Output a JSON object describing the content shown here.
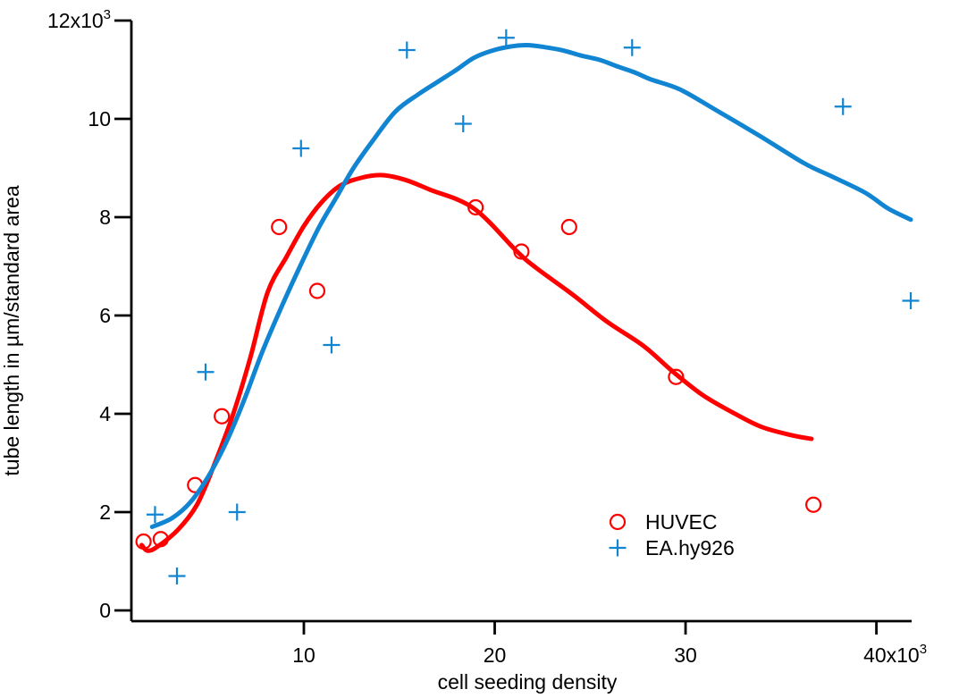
{
  "chart_data": {
    "type": "scatter",
    "title": "",
    "xlabel": "cell seeding density",
    "ylabel": "tube length in µm/standard area",
    "grid": false,
    "legend_position": "inside-lower-right",
    "x_range": [
      962,
      41846
    ],
    "y_range": [
      0,
      12000
    ],
    "x_ticks": [
      {
        "value": 10000,
        "text": "10"
      },
      {
        "value": 20000,
        "text": "20"
      },
      {
        "value": 30000,
        "text": "30"
      },
      {
        "value": 40000,
        "text": "40x10",
        "sup": "3"
      }
    ],
    "y_ticks": [
      {
        "value": 0,
        "text": "0"
      },
      {
        "value": 2000,
        "text": "2"
      },
      {
        "value": 4000,
        "text": "4"
      },
      {
        "value": 6000,
        "text": "6"
      },
      {
        "value": 8000,
        "text": "8"
      },
      {
        "value": 10000,
        "text": "10"
      },
      {
        "value": 12000,
        "text": "12x10",
        "sup": "3"
      }
    ],
    "series": [
      {
        "name": "HUVEC",
        "marker": "circle",
        "color": "#ff0000",
        "points": [
          [
            1600,
            1400
          ],
          [
            2500,
            1450
          ],
          [
            4300,
            2550
          ],
          [
            5700,
            3950
          ],
          [
            8700,
            7800
          ],
          [
            10700,
            6500
          ],
          [
            19000,
            8200
          ],
          [
            21400,
            7300
          ],
          [
            23900,
            7800
          ],
          [
            29500,
            4750
          ],
          [
            36700,
            2150
          ]
        ],
        "fit_curve": [
          [
            1500,
            1330
          ],
          [
            1800,
            1215
          ],
          [
            2300,
            1290
          ],
          [
            3400,
            1640
          ],
          [
            4400,
            2150
          ],
          [
            5300,
            2960
          ],
          [
            6300,
            4000
          ],
          [
            7200,
            5150
          ],
          [
            8100,
            6470
          ],
          [
            9100,
            7200
          ],
          [
            10000,
            7820
          ],
          [
            10900,
            8290
          ],
          [
            11900,
            8640
          ],
          [
            13000,
            8800
          ],
          [
            14100,
            8855
          ],
          [
            15300,
            8760
          ],
          [
            16600,
            8560
          ],
          [
            18900,
            8180
          ],
          [
            21200,
            7290
          ],
          [
            22200,
            6960
          ],
          [
            24100,
            6420
          ],
          [
            25900,
            5870
          ],
          [
            27800,
            5380
          ],
          [
            29300,
            4870
          ],
          [
            30900,
            4380
          ],
          [
            32500,
            4020
          ],
          [
            34000,
            3730
          ],
          [
            35600,
            3560
          ],
          [
            36600,
            3490
          ]
        ]
      },
      {
        "name": "EA.hy926",
        "marker": "plus",
        "color": "#1185d2",
        "points": [
          [
            2200,
            1950
          ],
          [
            3350,
            700
          ],
          [
            4850,
            4850
          ],
          [
            6500,
            2000
          ],
          [
            9850,
            9400
          ],
          [
            11450,
            5400
          ],
          [
            15400,
            11400
          ],
          [
            18350,
            9900
          ],
          [
            20600,
            11650
          ],
          [
            27200,
            11450
          ],
          [
            38250,
            10250
          ],
          [
            41800,
            6300
          ]
        ],
        "fit_curve": [
          [
            2050,
            1700
          ],
          [
            3100,
            1880
          ],
          [
            4050,
            2200
          ],
          [
            5000,
            2730
          ],
          [
            5930,
            3420
          ],
          [
            6860,
            4270
          ],
          [
            7800,
            5240
          ],
          [
            8800,
            6150
          ],
          [
            9800,
            7000
          ],
          [
            10800,
            7800
          ],
          [
            11700,
            8400
          ],
          [
            12600,
            9000
          ],
          [
            13600,
            9550
          ],
          [
            14800,
            10150
          ],
          [
            16000,
            10500
          ],
          [
            17000,
            10750
          ],
          [
            18000,
            11000
          ],
          [
            18900,
            11240
          ],
          [
            19800,
            11380
          ],
          [
            20800,
            11470
          ],
          [
            21700,
            11500
          ],
          [
            22600,
            11460
          ],
          [
            23600,
            11390
          ],
          [
            24500,
            11290
          ],
          [
            25500,
            11200
          ],
          [
            26400,
            11070
          ],
          [
            27300,
            10950
          ],
          [
            28200,
            10800
          ],
          [
            29700,
            10600
          ],
          [
            31500,
            10200
          ],
          [
            33900,
            9650
          ],
          [
            36200,
            9100
          ],
          [
            37600,
            8840
          ],
          [
            39400,
            8500
          ],
          [
            40600,
            8180
          ],
          [
            41800,
            7950
          ]
        ]
      }
    ]
  }
}
